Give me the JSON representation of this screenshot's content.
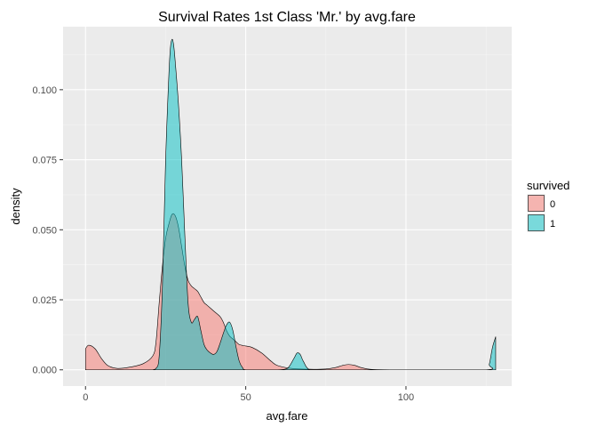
{
  "chart_data": {
    "type": "area",
    "title": "Survival Rates 1st Class 'Mr.' by avg.fare",
    "xlabel": "avg.fare",
    "ylabel": "density",
    "xlim": [
      -7,
      133
    ],
    "ylim": [
      -0.0058,
      0.1225
    ],
    "x_ticks": [
      0,
      50,
      100
    ],
    "y_ticks": [
      0.0,
      0.025,
      0.05,
      0.075,
      0.1
    ],
    "x_tick_labels": [
      "0",
      "50",
      "100"
    ],
    "y_tick_labels": [
      "0.000",
      "0.025",
      "0.050",
      "0.075",
      "0.100"
    ],
    "grid": true,
    "legend": {
      "title": "survived",
      "position": "right",
      "items": [
        {
          "label": "0",
          "color": "#F8766D"
        },
        {
          "label": "1",
          "color": "#00BFC4"
        }
      ]
    },
    "series": [
      {
        "name": "0",
        "color": "#F8766D",
        "x": [
          0,
          1,
          3,
          5,
          7,
          10,
          14,
          18,
          21,
          22,
          23,
          24,
          25,
          26,
          27,
          28,
          29,
          30,
          31,
          32,
          33,
          34,
          35,
          36,
          37,
          38,
          40,
          42,
          43,
          44,
          45,
          46,
          47,
          48,
          50,
          52,
          55,
          58,
          60,
          65,
          70,
          75,
          78,
          80,
          82,
          84,
          86,
          88,
          90,
          95,
          100,
          110,
          120,
          126,
          128
        ],
        "y": [
          0.0075,
          0.0088,
          0.0075,
          0.004,
          0.0015,
          0.0005,
          0.001,
          0.0022,
          0.005,
          0.01,
          0.024,
          0.037,
          0.047,
          0.052,
          0.0555,
          0.055,
          0.051,
          0.044,
          0.037,
          0.032,
          0.03,
          0.029,
          0.028,
          0.026,
          0.024,
          0.023,
          0.021,
          0.019,
          0.017,
          0.014,
          0.012,
          0.011,
          0.01,
          0.009,
          0.0085,
          0.008,
          0.006,
          0.003,
          0.0015,
          0.0004,
          0.0002,
          0.0003,
          0.0008,
          0.0015,
          0.0019,
          0.0016,
          0.0008,
          0.0003,
          0.0001,
          0,
          0,
          0,
          0,
          0,
          0
        ]
      },
      {
        "name": "1",
        "color": "#00BFC4",
        "x": [
          21,
          22,
          23,
          24,
          25,
          26,
          26.5,
          27,
          27.5,
          28,
          29,
          30,
          31,
          32,
          33,
          34,
          35,
          36,
          37,
          38,
          39,
          40,
          41,
          42,
          43,
          44,
          45,
          46,
          47,
          48,
          49,
          50,
          55,
          60,
          63,
          65,
          66,
          67,
          68,
          70,
          75,
          100,
          125,
          126,
          127,
          128
        ],
        "y": [
          0,
          0.0005,
          0.005,
          0.03,
          0.075,
          0.105,
          0.115,
          0.118,
          0.116,
          0.11,
          0.095,
          0.075,
          0.048,
          0.024,
          0.017,
          0.018,
          0.019,
          0.014,
          0.009,
          0.007,
          0.006,
          0.0055,
          0.0065,
          0.0095,
          0.013,
          0.016,
          0.017,
          0.014,
          0.008,
          0.003,
          0.0008,
          0,
          0,
          0,
          0.0005,
          0.004,
          0.006,
          0.0055,
          0.003,
          0,
          0,
          0,
          0,
          0.002,
          0.008,
          0.0118
        ]
      }
    ]
  }
}
